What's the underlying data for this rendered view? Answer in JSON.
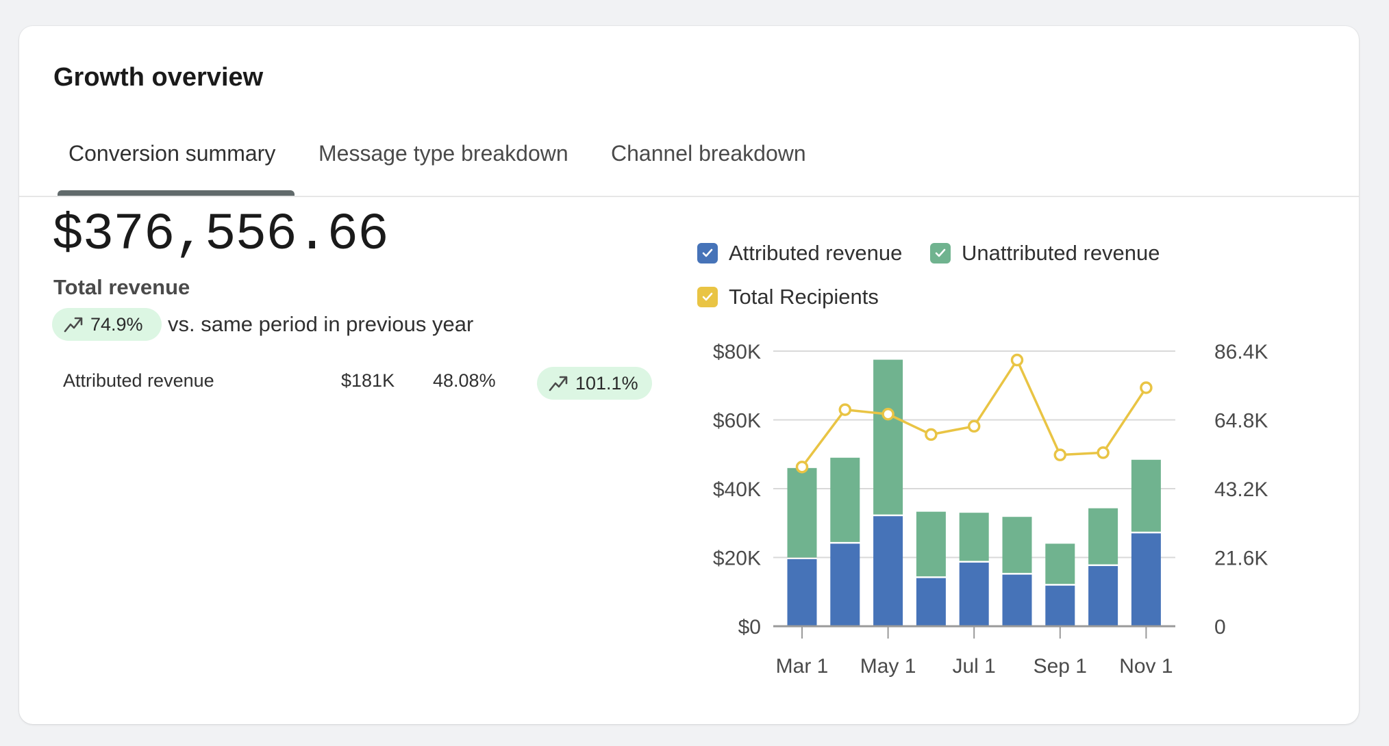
{
  "card": {
    "title": "Growth overview",
    "tabs": [
      {
        "label": "Conversion summary",
        "active": true
      },
      {
        "label": "Message type breakdown",
        "active": false
      },
      {
        "label": "Channel breakdown",
        "active": false
      }
    ]
  },
  "summary": {
    "total_value": "$376,556.66",
    "total_label": "Total revenue",
    "change_badge": "74.9%",
    "change_text": "vs. same period in previous year",
    "trend_icon": "trend-up-icon"
  },
  "breakdown_row": {
    "label": "Attributed revenue",
    "amount": "$181K",
    "share": "48.08%",
    "change": "101.1%"
  },
  "colors": {
    "attributed": "#4673b8",
    "unattributed": "#70b38f",
    "recipients": "#e9c444",
    "badge_bg": "#dcf6e3",
    "gridline": "#d9d9d9"
  },
  "chart_data": {
    "type": "bar",
    "stacked": true,
    "x": [
      "Mar 1",
      "Apr 1",
      "May 1",
      "Jun 1",
      "Jul 1",
      "Aug 1",
      "Sep 1",
      "Oct 1",
      "Nov 1"
    ],
    "x_tick_labels": [
      "Mar 1",
      "May 1",
      "Jul 1",
      "Sep 1",
      "Nov 1"
    ],
    "series": [
      {
        "name": "Attributed revenue",
        "type": "bar",
        "axis": "left",
        "values": [
          19500,
          24000,
          32000,
          14000,
          18500,
          15000,
          11800,
          17500,
          27000
        ]
      },
      {
        "name": "Unattributed revenue",
        "type": "bar",
        "axis": "left",
        "values": [
          26500,
          25000,
          45500,
          19300,
          14500,
          16800,
          12200,
          16800,
          21400
        ]
      },
      {
        "name": "Total Recipients",
        "type": "line",
        "axis": "right",
        "values": [
          50000,
          68000,
          66600,
          60200,
          62800,
          83600,
          53800,
          54500,
          74900
        ]
      }
    ],
    "ylim": [
      0,
      80000
    ],
    "y_ticks": [
      "$0",
      "$20K",
      "$40K",
      "$60K",
      "$80K"
    ],
    "y2lim": [
      0,
      86400
    ],
    "y2_ticks": [
      "0",
      "21.6K",
      "43.2K",
      "64.8K",
      "86.4K"
    ],
    "grid": true,
    "legend_position": "top"
  }
}
